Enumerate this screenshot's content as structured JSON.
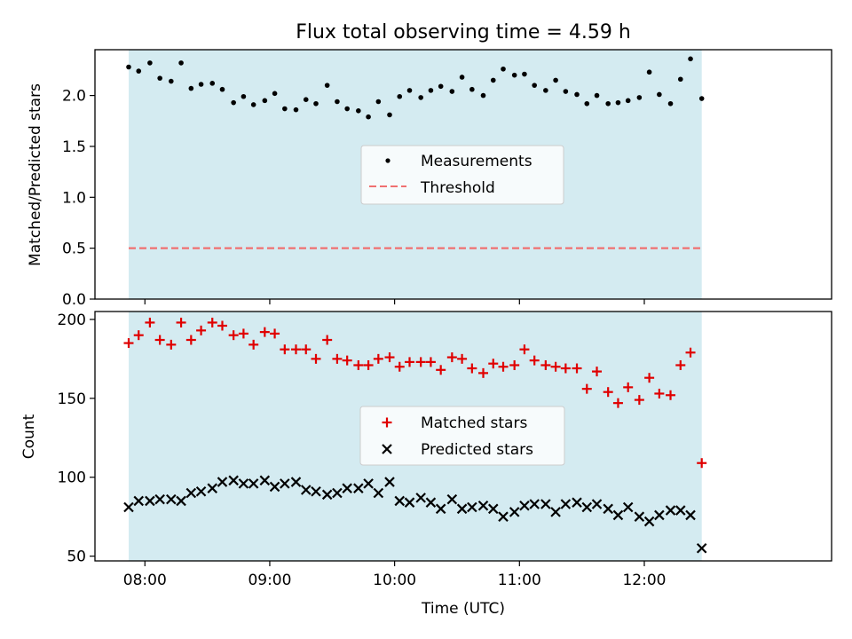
{
  "colors": {
    "observing_band": "#d4ebf1",
    "matched": "#e00000",
    "predicted": "#000000",
    "measurement": "#000000",
    "threshold": "#f07070"
  },
  "chart_data": [
    {
      "type": "scatter",
      "title": "Flux total observing time = 4.59 h",
      "xlabel": "",
      "ylabel": "Matched/Predicted stars",
      "ylim": [
        0,
        2.45
      ],
      "yticks": [
        0.0,
        0.5,
        1.0,
        1.5,
        2.0,
        2.5
      ],
      "ytick_labels": [
        "0.0",
        "0.5",
        "1.0",
        "1.5",
        "2.0",
        ""
      ],
      "xlim": [
        7.6,
        13.5
      ],
      "xticks": [
        8,
        9,
        10,
        11,
        12
      ],
      "observing_window": [
        7.87,
        12.46
      ],
      "legend": {
        "position": "center",
        "entries": [
          "Measurements",
          "Threshold"
        ]
      },
      "threshold": {
        "name": "Threshold",
        "value": 0.5,
        "style": "dashed"
      },
      "series": [
        {
          "name": "Measurements",
          "marker": "dot",
          "x": [
            7.87,
            7.95,
            8.04,
            8.12,
            8.21,
            8.29,
            8.37,
            8.45,
            8.54,
            8.62,
            8.71,
            8.79,
            8.87,
            8.96,
            9.04,
            9.12,
            9.21,
            9.29,
            9.37,
            9.46,
            9.54,
            9.62,
            9.71,
            9.79,
            9.87,
            9.96,
            10.04,
            10.12,
            10.21,
            10.29,
            10.37,
            10.46,
            10.54,
            10.62,
            10.71,
            10.79,
            10.87,
            10.96,
            11.04,
            11.12,
            11.21,
            11.29,
            11.37,
            11.46,
            11.54,
            11.62,
            11.71,
            11.79,
            11.87,
            11.96,
            12.04,
            12.12,
            12.21,
            12.29,
            12.37,
            12.46
          ],
          "y": [
            2.28,
            2.24,
            2.32,
            2.17,
            2.14,
            2.32,
            2.07,
            2.11,
            2.12,
            2.06,
            1.93,
            1.99,
            1.91,
            1.95,
            2.02,
            1.87,
            1.86,
            1.96,
            1.92,
            2.1,
            1.94,
            1.87,
            1.85,
            1.79,
            1.94,
            1.81,
            1.99,
            2.05,
            1.98,
            2.05,
            2.09,
            2.04,
            2.18,
            2.06,
            2.0,
            2.15,
            2.26,
            2.2,
            2.21,
            2.1,
            2.05,
            2.15,
            2.04,
            2.01,
            1.92,
            2.0,
            1.92,
            1.93,
            1.95,
            1.98,
            2.23,
            2.01,
            1.92,
            2.16,
            2.36,
            1.97
          ]
        }
      ]
    },
    {
      "type": "scatter",
      "title": "",
      "xlabel": "Time (UTC)",
      "ylabel": "Count",
      "ylim": [
        47,
        205
      ],
      "yticks": [
        50,
        100,
        150,
        200
      ],
      "ytick_labels": [
        "50",
        "100",
        "150",
        "200"
      ],
      "xlim": [
        7.6,
        13.5
      ],
      "xticks": [
        8,
        9,
        10,
        11,
        12
      ],
      "xtick_labels": [
        "08:00",
        "09:00",
        "10:00",
        "11:00",
        "12:00"
      ],
      "observing_window": [
        7.87,
        12.46
      ],
      "legend": {
        "position": "center",
        "entries": [
          "Matched stars",
          "Predicted stars"
        ]
      },
      "series": [
        {
          "name": "Matched stars",
          "marker": "plus",
          "x": [
            7.87,
            7.95,
            8.04,
            8.12,
            8.21,
            8.29,
            8.37,
            8.45,
            8.54,
            8.62,
            8.71,
            8.79,
            8.87,
            8.96,
            9.04,
            9.12,
            9.21,
            9.29,
            9.37,
            9.46,
            9.54,
            9.62,
            9.71,
            9.79,
            9.87,
            9.96,
            10.04,
            10.12,
            10.21,
            10.29,
            10.37,
            10.46,
            10.54,
            10.62,
            10.71,
            10.79,
            10.87,
            10.96,
            11.04,
            11.12,
            11.21,
            11.29,
            11.37,
            11.46,
            11.54,
            11.62,
            11.71,
            11.79,
            11.87,
            11.96,
            12.04,
            12.12,
            12.21,
            12.29,
            12.37,
            12.46
          ],
          "y": [
            185,
            190,
            198,
            187,
            184,
            198,
            187,
            193,
            198,
            196,
            190,
            191,
            184,
            192,
            191,
            181,
            181,
            181,
            175,
            187,
            175,
            174,
            171,
            171,
            175,
            176,
            170,
            173,
            173,
            173,
            168,
            176,
            175,
            169,
            166,
            172,
            170,
            171,
            181,
            174,
            171,
            170,
            169,
            169,
            156,
            167,
            154,
            147,
            157,
            149,
            163,
            153,
            152,
            171,
            179,
            109
          ]
        },
        {
          "name": "Predicted stars",
          "marker": "x",
          "x": [
            7.87,
            7.95,
            8.04,
            8.12,
            8.21,
            8.29,
            8.37,
            8.45,
            8.54,
            8.62,
            8.71,
            8.79,
            8.87,
            8.96,
            9.04,
            9.12,
            9.21,
            9.29,
            9.37,
            9.46,
            9.54,
            9.62,
            9.71,
            9.79,
            9.87,
            9.96,
            10.04,
            10.12,
            10.21,
            10.29,
            10.37,
            10.46,
            10.54,
            10.62,
            10.71,
            10.79,
            10.87,
            10.96,
            11.04,
            11.12,
            11.21,
            11.29,
            11.37,
            11.46,
            11.54,
            11.62,
            11.71,
            11.79,
            11.87,
            11.96,
            12.04,
            12.12,
            12.21,
            12.29,
            12.37,
            12.46
          ],
          "y": [
            81,
            85,
            85,
            86,
            86,
            85,
            90,
            91,
            93,
            97,
            98,
            96,
            96,
            98,
            94,
            96,
            97,
            92,
            91,
            89,
            90,
            93,
            93,
            96,
            90,
            97,
            85,
            84,
            87,
            84,
            80,
            86,
            80,
            81,
            82,
            80,
            75,
            78,
            82,
            83,
            83,
            78,
            83,
            84,
            81,
            83,
            80,
            76,
            81,
            75,
            72,
            76,
            79,
            79,
            76,
            55
          ]
        }
      ]
    }
  ]
}
